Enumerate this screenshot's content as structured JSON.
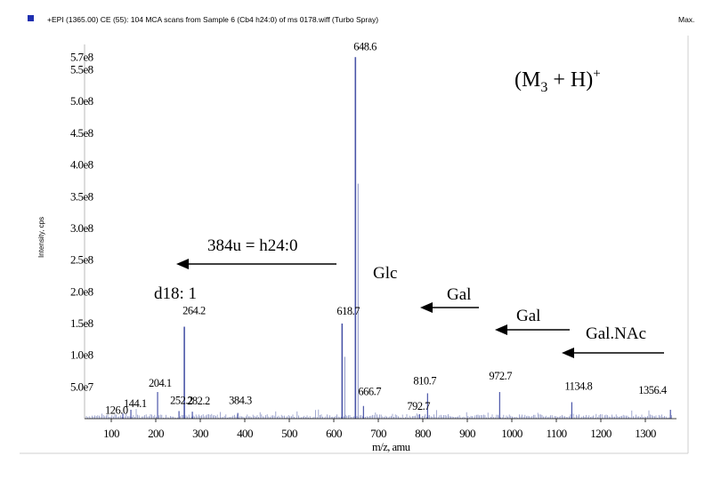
{
  "header": {
    "scan_text": "+EPI (1365.00) CE (55): 104 MCA scans from Sample 6 (Cb4 h24:0) of ms 0178.wiff (Turbo Spray)",
    "max_label": "Max."
  },
  "colors": {
    "marker": "#1f2fb0",
    "spectrum": "#8a93c4",
    "peak": "#4a55a8",
    "axis": "#000000"
  },
  "chart_data": {
    "type": "bar",
    "xlabel": "m/z, amu",
    "ylabel": "Intensity, cps",
    "xlim": [
      40,
      1370
    ],
    "ylim": [
      0,
      590000000.0
    ],
    "x_ticks": [
      100,
      200,
      300,
      400,
      500,
      600,
      700,
      800,
      900,
      1000,
      1100,
      1200,
      1300
    ],
    "y_ticks": [
      {
        "value": 570000000.0,
        "label": "5.7e8"
      },
      {
        "value": 550000000.0,
        "label": "5.5e8"
      },
      {
        "value": 500000000.0,
        "label": "5.0e8"
      },
      {
        "value": 450000000.0,
        "label": "4.5e8"
      },
      {
        "value": 400000000.0,
        "label": "4.0e8"
      },
      {
        "value": 350000000.0,
        "label": "3.5e8"
      },
      {
        "value": 300000000.0,
        "label": "3.0e8"
      },
      {
        "value": 250000000.0,
        "label": "2.5e8"
      },
      {
        "value": 200000000.0,
        "label": "2.0e8"
      },
      {
        "value": 150000000.0,
        "label": "1.5e8"
      },
      {
        "value": 100000000.0,
        "label": "1.0e8"
      },
      {
        "value": 50000000.0,
        "label": "5.0e7"
      }
    ],
    "peaks": [
      {
        "mz": 126.0,
        "intensity": 8000000.0,
        "label": "126.0"
      },
      {
        "mz": 144.1,
        "intensity": 14000000.0,
        "label": "144.1"
      },
      {
        "mz": 204.1,
        "intensity": 42000000.0,
        "label": "204.1"
      },
      {
        "mz": 252.2,
        "intensity": 12000000.0,
        "label": "252.2"
      },
      {
        "mz": 264.2,
        "intensity": 145000000.0,
        "label": "264.2"
      },
      {
        "mz": 282.2,
        "intensity": 11000000.0,
        "label": "282.2"
      },
      {
        "mz": 384.3,
        "intensity": 9000000.0,
        "label": "384.3"
      },
      {
        "mz": 618.7,
        "intensity": 150000000.0,
        "label": "618.7"
      },
      {
        "mz": 648.6,
        "intensity": 570000000.0,
        "label": "648.6"
      },
      {
        "mz": 666.7,
        "intensity": 20000000.0,
        "label": "666.7"
      },
      {
        "mz": 792.7,
        "intensity": 7000000.0,
        "label": "792.7"
      },
      {
        "mz": 810.7,
        "intensity": 40000000.0,
        "label": "810.7"
      },
      {
        "mz": 972.7,
        "intensity": 42000000.0,
        "label": "972.7"
      },
      {
        "mz": 1134.8,
        "intensity": 26000000.0,
        "label": "1134.8"
      },
      {
        "mz": 1356.4,
        "intensity": 14000000.0,
        "label": "1356.4"
      }
    ],
    "annotations": {
      "parent_ion": "(M3 + H)+",
      "ceramide": "384u = h24:0",
      "sphingoid": "d18: 1",
      "glc": "Glc",
      "gal1": "Gal",
      "gal2": "Gal",
      "galnac": "Gal.NAc"
    }
  }
}
